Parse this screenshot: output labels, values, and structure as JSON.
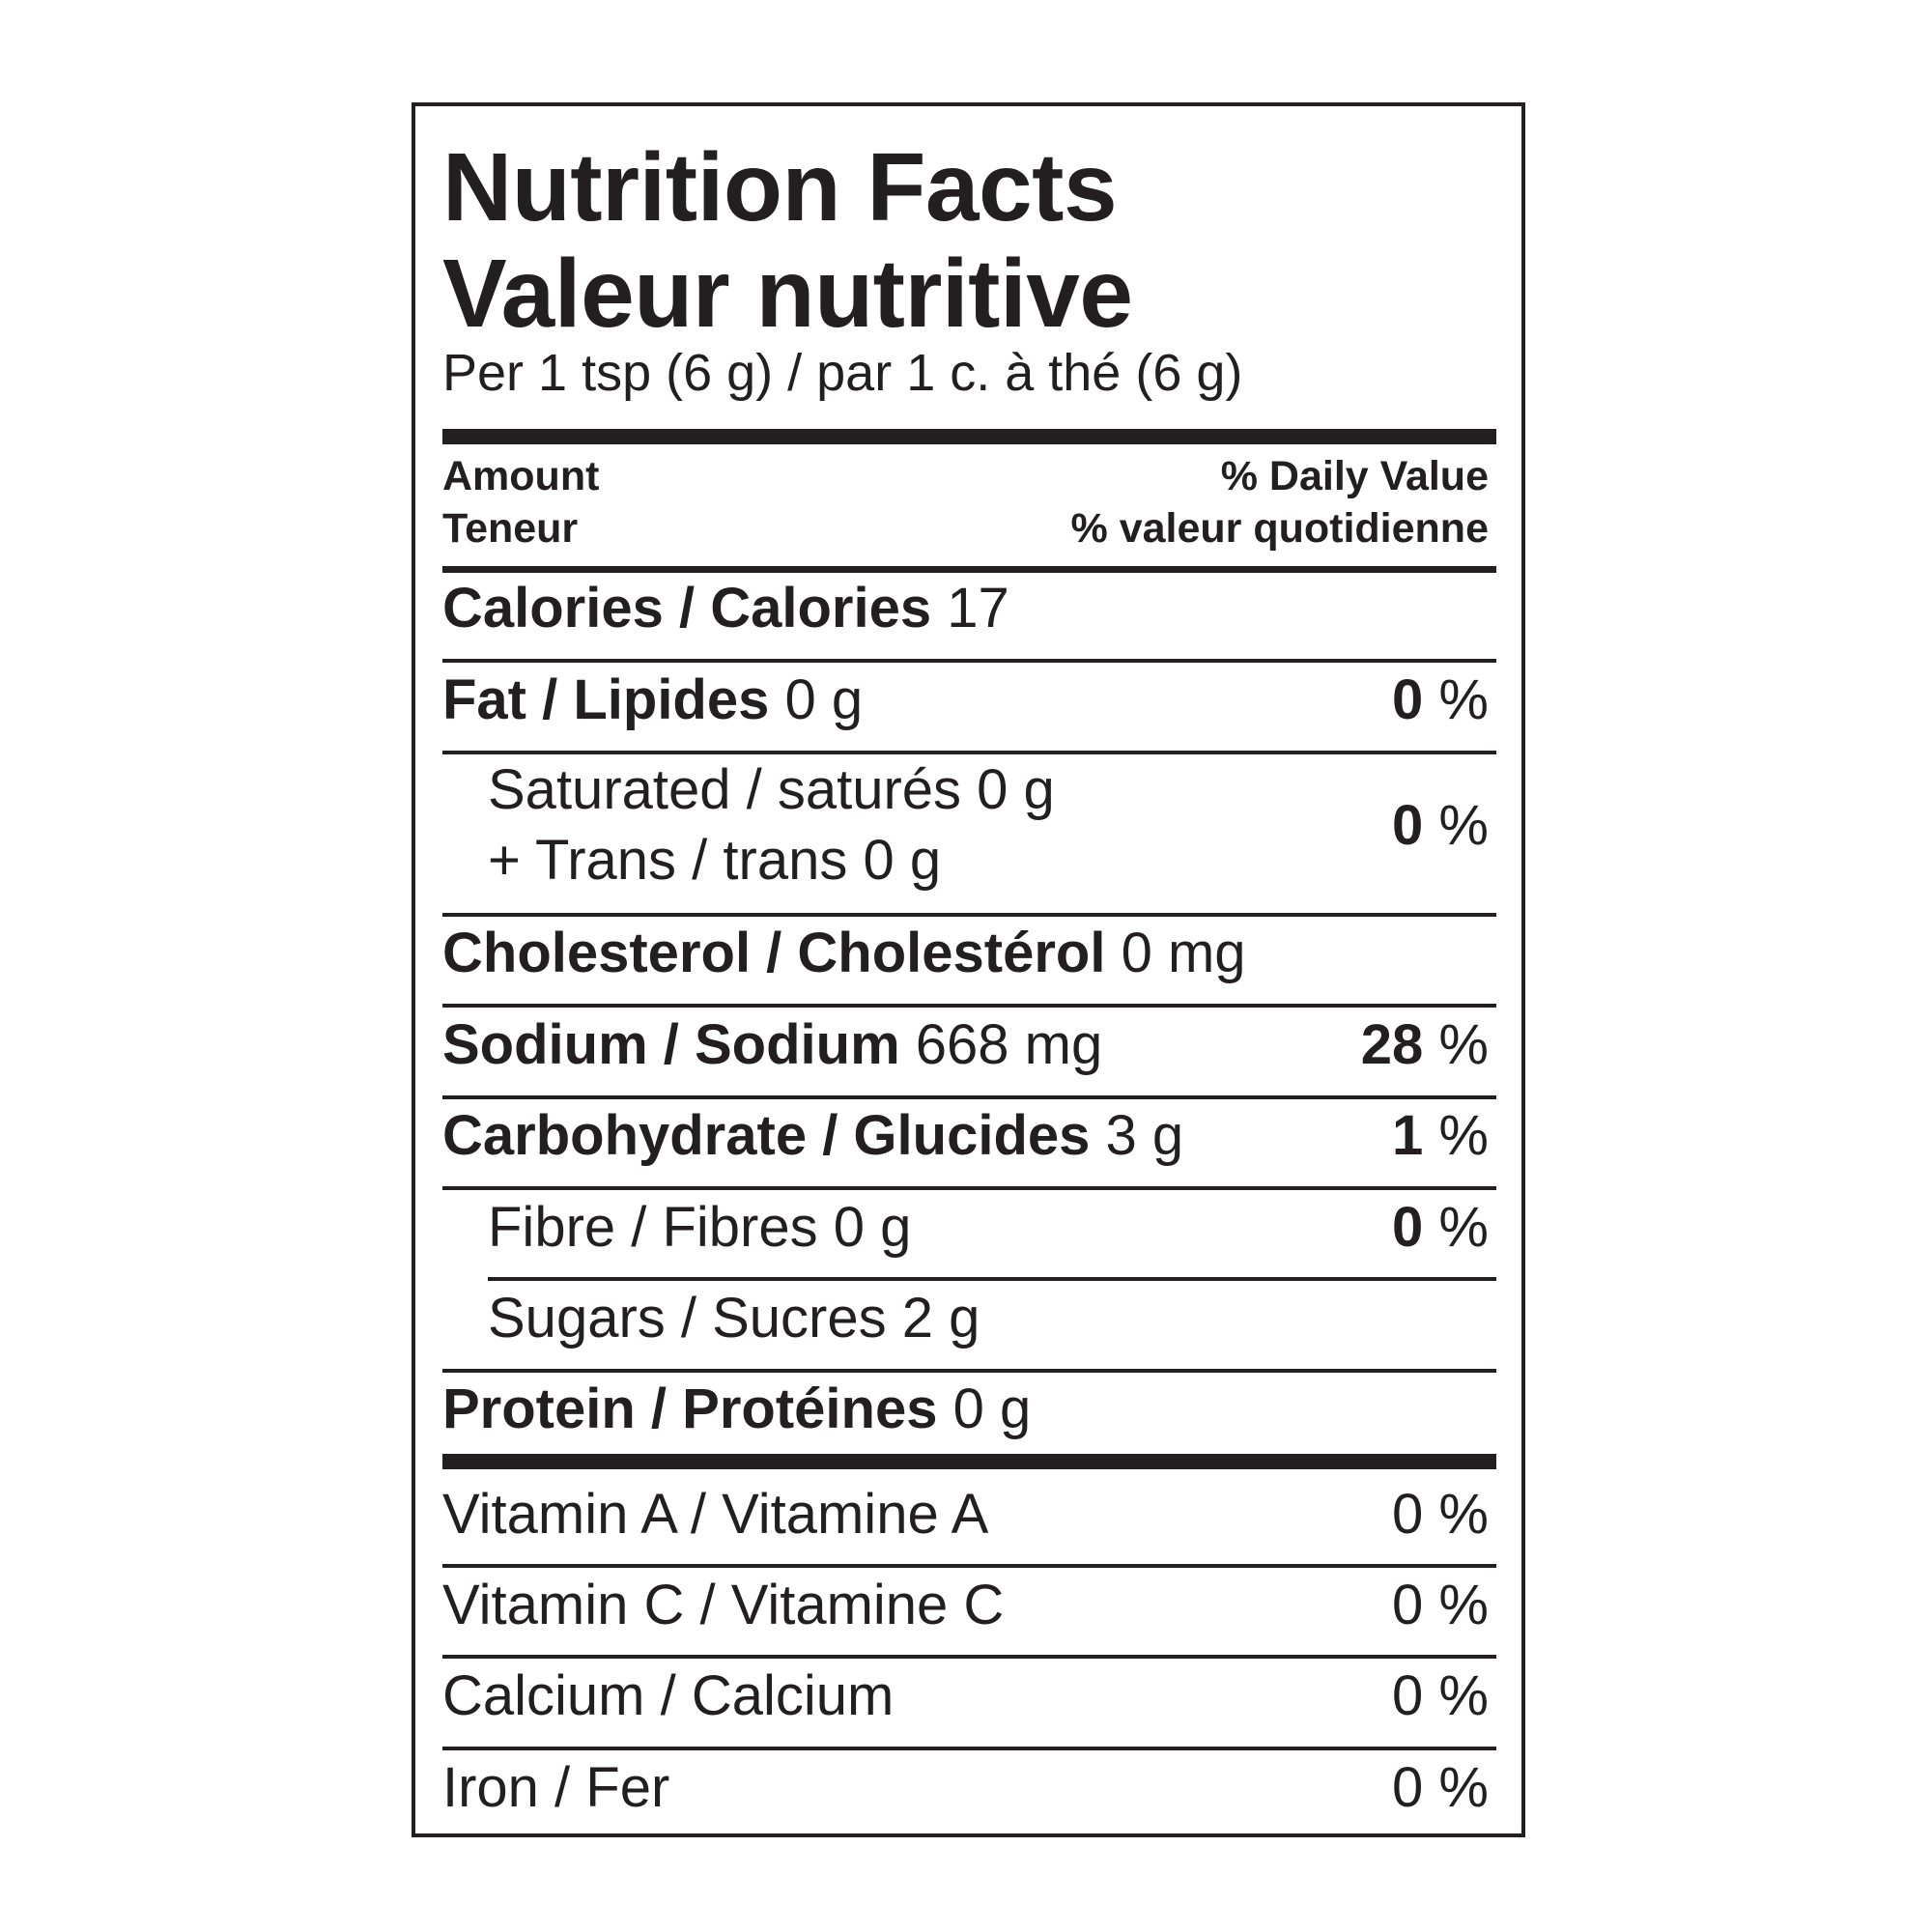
{
  "title_en": "Nutrition Facts",
  "title_fr": "Valeur nutritive",
  "serving": "Per 1 tsp (6 g) / par 1 c. à thé (6 g)",
  "header": {
    "amount_en": "Amount",
    "amount_fr": "Teneur",
    "dv_en": "% Daily Value",
    "dv_fr": "% valeur quotidienne"
  },
  "calories": {
    "label": "Calories / Calories",
    "value": "17"
  },
  "fat": {
    "label": "Fat / Lipides",
    "amount": "0 g",
    "dv": "0",
    "pct": "%"
  },
  "saturated": {
    "line1": "Saturated / saturés 0 g",
    "line2": "+ Trans / trans 0 g",
    "dv": "0",
    "pct": "%"
  },
  "cholesterol": {
    "label": "Cholesterol / Cholestérol",
    "amount": "0 mg"
  },
  "sodium": {
    "label": "Sodium / Sodium",
    "amount": "668 mg",
    "dv": "28",
    "pct": "%"
  },
  "carbohydrate": {
    "label": "Carbohydrate / Glucides",
    "amount": "3 g",
    "dv": "1",
    "pct": "%"
  },
  "fibre": {
    "label": "Fibre / Fibres 0 g",
    "dv": "0",
    "pct": "%"
  },
  "sugars": {
    "label": "Sugars / Sucres 2 g"
  },
  "protein": {
    "label": "Protein / Protéines",
    "amount": "0 g"
  },
  "vitamins": [
    {
      "label": "Vitamin A / Vitamine A",
      "dv": "0 %"
    },
    {
      "label": "Vitamin C / Vitamine C",
      "dv": "0 %"
    },
    {
      "label": "Calcium / Calcium",
      "dv": "0 %"
    },
    {
      "label": "Iron / Fer",
      "dv": "0 %"
    }
  ]
}
